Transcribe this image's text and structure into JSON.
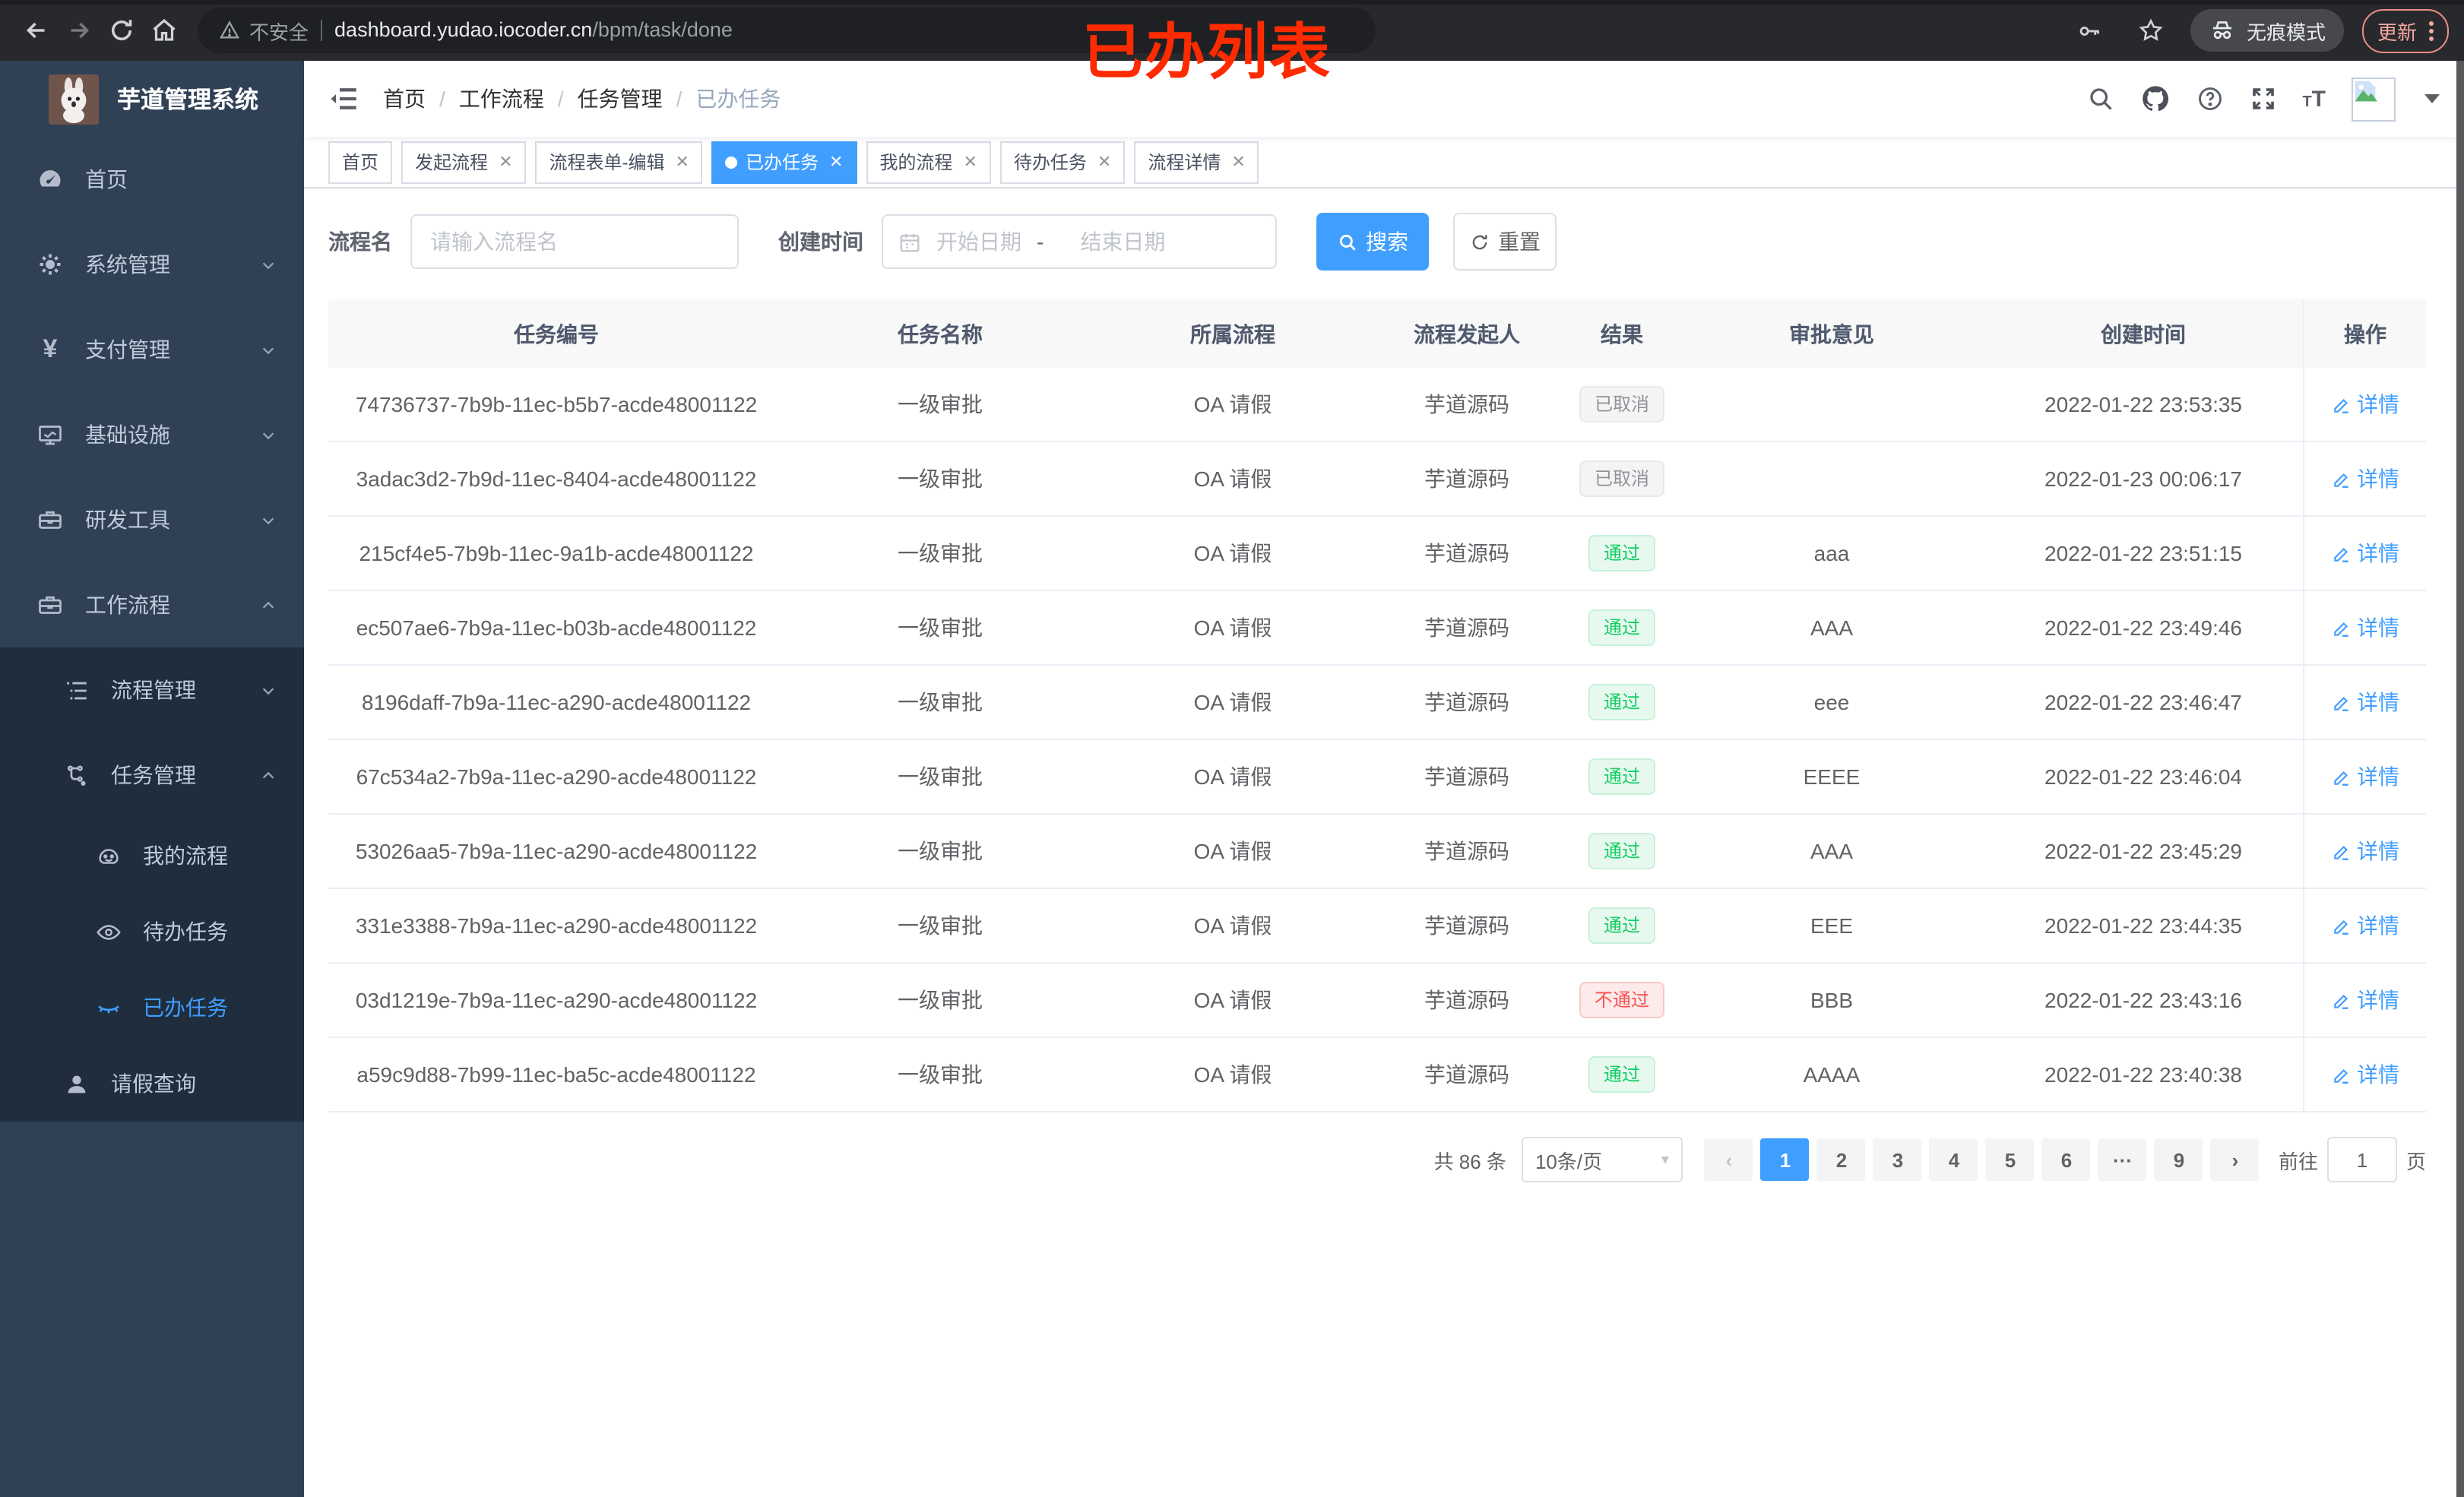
{
  "browser": {
    "insecure_label": "不安全",
    "url_host": "dashboard.yudao.iocoder.cn",
    "url_path": "/bpm/task/done",
    "incognito_label": "无痕模式",
    "update_label": "更新"
  },
  "annotation": {
    "text": "已办列表",
    "color": "#fe2b01"
  },
  "sidebar": {
    "title": "芋道管理系统",
    "items": [
      {
        "label": "首页",
        "icon": "dashboard-icon"
      },
      {
        "label": "系统管理",
        "icon": "gear-icon"
      },
      {
        "label": "支付管理",
        "icon": "yen-icon"
      },
      {
        "label": "基础设施",
        "icon": "monitor-icon"
      },
      {
        "label": "研发工具",
        "icon": "toolbox-icon"
      },
      {
        "label": "工作流程",
        "icon": "briefcase-icon"
      },
      {
        "label": "流程管理",
        "icon": "list-icon"
      },
      {
        "label": "任务管理",
        "icon": "flow-icon"
      },
      {
        "label": "我的流程",
        "icon": "face-icon"
      },
      {
        "label": "待办任务",
        "icon": "eye-icon"
      },
      {
        "label": "已办任务",
        "icon": "eye-closed-icon"
      },
      {
        "label": "请假查询",
        "icon": "user-icon"
      }
    ]
  },
  "navbar": {
    "breadcrumb": [
      "首页",
      "工作流程",
      "任务管理",
      "已办任务"
    ]
  },
  "tabs": [
    {
      "label": "首页"
    },
    {
      "label": "发起流程"
    },
    {
      "label": "流程表单-编辑"
    },
    {
      "label": "已办任务"
    },
    {
      "label": "我的流程"
    },
    {
      "label": "待办任务"
    },
    {
      "label": "流程详情"
    }
  ],
  "filter": {
    "name_label": "流程名",
    "name_placeholder": "请输入流程名",
    "time_label": "创建时间",
    "start_placeholder": "开始日期",
    "range_separator": "-",
    "end_placeholder": "结束日期",
    "search_label": "搜索",
    "reset_label": "重置"
  },
  "table": {
    "columns": [
      "任务编号",
      "任务名称",
      "所属流程",
      "流程发起人",
      "结果",
      "审批意见",
      "创建时间",
      "操作"
    ],
    "action_label": "详情",
    "rows": [
      {
        "id": "74736737-7b9b-11ec-b5b7-acde48001122",
        "name": "一级审批",
        "process": "OA 请假",
        "starter": "芋道源码",
        "result": "已取消",
        "result_type": "info",
        "comment": "",
        "time": "2022-01-22 23:53:35"
      },
      {
        "id": "3adac3d2-7b9d-11ec-8404-acde48001122",
        "name": "一级审批",
        "process": "OA 请假",
        "starter": "芋道源码",
        "result": "已取消",
        "result_type": "info",
        "comment": "",
        "time": "2022-01-23 00:06:17"
      },
      {
        "id": "215cf4e5-7b9b-11ec-9a1b-acde48001122",
        "name": "一级审批",
        "process": "OA 请假",
        "starter": "芋道源码",
        "result": "通过",
        "result_type": "success",
        "comment": "aaa",
        "time": "2022-01-22 23:51:15"
      },
      {
        "id": "ec507ae6-7b9a-11ec-b03b-acde48001122",
        "name": "一级审批",
        "process": "OA 请假",
        "starter": "芋道源码",
        "result": "通过",
        "result_type": "success",
        "comment": "AAA",
        "time": "2022-01-22 23:49:46"
      },
      {
        "id": "8196daff-7b9a-11ec-a290-acde48001122",
        "name": "一级审批",
        "process": "OA 请假",
        "starter": "芋道源码",
        "result": "通过",
        "result_type": "success",
        "comment": "eee",
        "time": "2022-01-22 23:46:47"
      },
      {
        "id": "67c534a2-7b9a-11ec-a290-acde48001122",
        "name": "一级审批",
        "process": "OA 请假",
        "starter": "芋道源码",
        "result": "通过",
        "result_type": "success",
        "comment": "EEEE",
        "time": "2022-01-22 23:46:04"
      },
      {
        "id": "53026aa5-7b9a-11ec-a290-acde48001122",
        "name": "一级审批",
        "process": "OA 请假",
        "starter": "芋道源码",
        "result": "通过",
        "result_type": "success",
        "comment": "AAA",
        "time": "2022-01-22 23:45:29"
      },
      {
        "id": "331e3388-7b9a-11ec-a290-acde48001122",
        "name": "一级审批",
        "process": "OA 请假",
        "starter": "芋道源码",
        "result": "通过",
        "result_type": "success",
        "comment": "EEE",
        "time": "2022-01-22 23:44:35"
      },
      {
        "id": "03d1219e-7b9a-11ec-a290-acde48001122",
        "name": "一级审批",
        "process": "OA 请假",
        "starter": "芋道源码",
        "result": "不通过",
        "result_type": "danger",
        "comment": "BBB",
        "time": "2022-01-22 23:43:16"
      },
      {
        "id": "a59c9d88-7b99-11ec-ba5c-acde48001122",
        "name": "一级审批",
        "process": "OA 请假",
        "starter": "芋道源码",
        "result": "通过",
        "result_type": "success",
        "comment": "AAAA",
        "time": "2022-01-22 23:40:38"
      }
    ]
  },
  "pagination": {
    "total_label": "共 86 条",
    "page_size": "10条/页",
    "pages": [
      "1",
      "2",
      "3",
      "4",
      "5",
      "6",
      "···",
      "9"
    ],
    "active_page": "1",
    "goto_label": "前往",
    "goto_value": "1",
    "unit_label": "页"
  },
  "colors": {
    "accent": "#409eff",
    "success": "#13ce66",
    "danger": "#f9504e",
    "info": "#909399",
    "sidebar": "#304156",
    "submenu": "#1f2d3d"
  }
}
